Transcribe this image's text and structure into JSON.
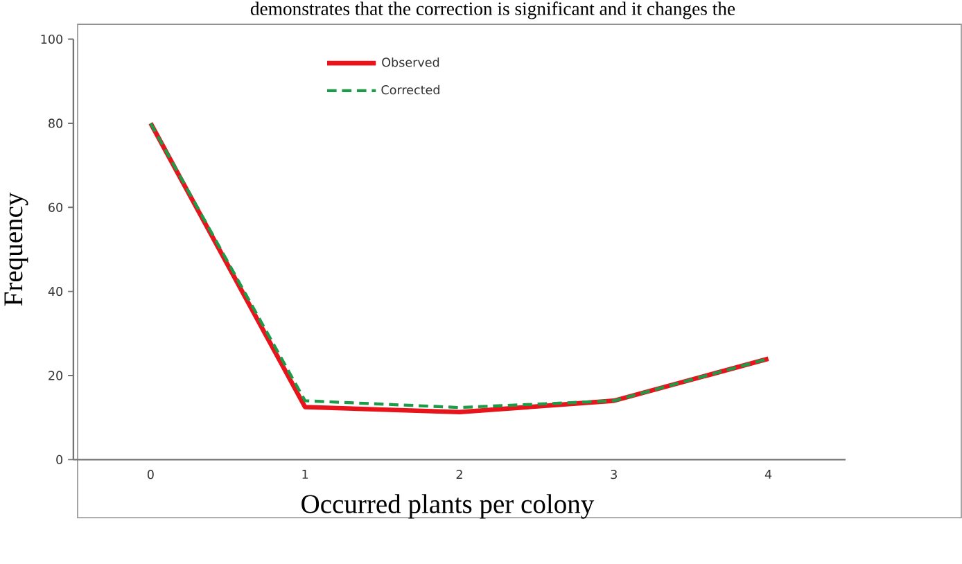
{
  "chart_data": {
    "type": "line",
    "xlabel": "Occurred plants per colony",
    "ylabel": "Frequency",
    "annotations": [
      "demonstrates that the correction is significant and it changes the"
    ],
    "categories": [
      "0",
      "1",
      "2",
      "3",
      "4"
    ],
    "series": [
      {
        "name": "Observed",
        "color": "#e8141b",
        "line_style": "solid",
        "values": [
          80,
          12.5,
          11.3,
          14,
          24
        ]
      },
      {
        "name": "Corrected",
        "color": "#1f9a48",
        "line_style": "dashed",
        "values": [
          80,
          14,
          12.4,
          14,
          24
        ]
      }
    ],
    "ylim": [
      0,
      100
    ],
    "yticks": [
      0,
      20,
      40,
      60,
      80,
      100
    ],
    "legend": "top",
    "grid": false,
    "marker": "none"
  }
}
